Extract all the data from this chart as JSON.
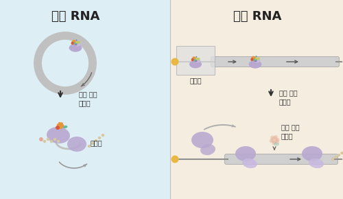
{
  "left_bg": "#ddeef5",
  "right_bg": "#f5ede0",
  "title_left": "원형 RNA",
  "title_right": "선형 RNA",
  "label_ribosome": "리보솜",
  "label_exon": "엑손 접합\n복합체",
  "title_fontsize": 13,
  "label_fontsize": 7,
  "colors": {
    "ring": "#c8c8c8",
    "ribosome_large": "#b8a8d0",
    "ribosome_small": "#c8b8e0",
    "mRNA_rod": "#c8c8c8",
    "orange_crown": "#e8943a",
    "green_blob": "#b8d060",
    "teal_blob": "#68b898",
    "red_blob": "#d85838",
    "purple_blob": "#9878c0",
    "yellow_blob": "#d8c060",
    "blue_dot": "#5898c8",
    "bead": "#d8c8a0",
    "bead_pink": "#e8a898",
    "arrow_dark": "#444444",
    "arrow_gray": "#999999",
    "cap_yellow": "#e8b840",
    "exon_orange": "#e8b8a0",
    "exon_teal": "#98c8b8"
  }
}
